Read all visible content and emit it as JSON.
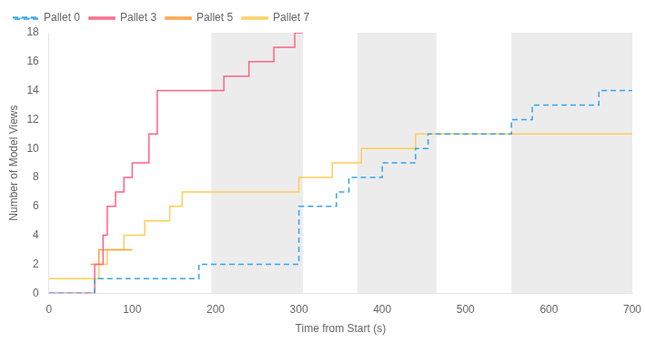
{
  "chart_data": {
    "type": "step",
    "xlabel": "Time from Start (s)",
    "ylabel": "Number of Model Views",
    "xlim": [
      0,
      700
    ],
    "ylim": [
      0,
      18
    ],
    "xticks": [
      0,
      100,
      200,
      300,
      400,
      500,
      600,
      700
    ],
    "yticks": [
      0,
      2,
      4,
      6,
      8,
      10,
      12,
      14,
      16,
      18
    ],
    "grid": false,
    "legend": "upper left",
    "shaded_regions": {
      "color": "#c8c8c8",
      "ranges": [
        [
          195,
          305
        ],
        [
          370,
          465
        ],
        [
          555,
          700
        ]
      ]
    },
    "series": [
      {
        "name": "Pallet 0",
        "line_style": "dashed",
        "x": [
          0,
          55,
          75,
          100,
          120,
          140,
          160,
          180,
          195,
          300,
          330,
          345,
          360,
          380,
          400,
          415,
          440,
          455,
          475,
          500,
          555,
          580,
          620,
          660,
          700
        ],
        "values": [
          0,
          1,
          1,
          1,
          1,
          1,
          1,
          2,
          2,
          6,
          6,
          7,
          8,
          8,
          9,
          9,
          10,
          11,
          11,
          11,
          12,
          13,
          13,
          14,
          14
        ]
      },
      {
        "name": "Pallet 3",
        "line_style": "solid",
        "x": [
          0,
          50,
          55,
          60,
          65,
          70,
          80,
          90,
          100,
          110,
          120,
          130,
          200,
          210,
          220,
          240,
          270,
          285,
          295,
          305
        ],
        "values": [
          0,
          0,
          2,
          2,
          4,
          6,
          7,
          8,
          9,
          9,
          11,
          14,
          14,
          15,
          15,
          16,
          17,
          17,
          18,
          18
        ]
      },
      {
        "name": "Pallet 5",
        "line_style": "solid",
        "x": [
          50,
          55,
          60,
          65,
          70,
          100
        ],
        "values": [
          2,
          2,
          3,
          3,
          3,
          3
        ]
      },
      {
        "name": "Pallet 7",
        "line_style": "solid",
        "x": [
          0,
          50,
          60,
          70,
          80,
          90,
          100,
          115,
          130,
          145,
          160,
          175,
          195,
          300,
          315,
          340,
          355,
          375,
          395,
          415,
          440,
          460,
          700
        ],
        "values": [
          1,
          1,
          2,
          3,
          3,
          4,
          4,
          5,
          5,
          6,
          7,
          7,
          7,
          8,
          8,
          9,
          9,
          10,
          10,
          10,
          11,
          11,
          11
        ]
      }
    ]
  }
}
